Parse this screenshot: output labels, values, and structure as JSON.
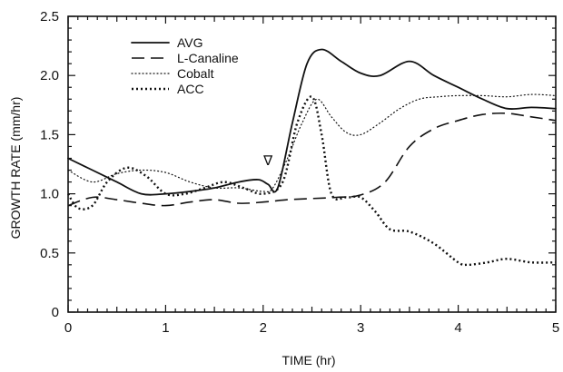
{
  "chart_data": {
    "type": "line",
    "title": "",
    "xlabel": "TIME (hr)",
    "ylabel": "GROWTH RATE (mm/hr)",
    "xlim": [
      0,
      5
    ],
    "ylim": [
      0,
      2.5
    ],
    "x_ticks": [
      "0",
      "1",
      "2",
      "3",
      "4",
      "5"
    ],
    "y_ticks": [
      "0",
      "0.5",
      "1.0",
      "1.5",
      "2.0",
      "2.5"
    ],
    "grid": false,
    "legend_position": "top-left",
    "annotation": {
      "text": "∇",
      "x": 2.05,
      "y": 1.28
    },
    "series": [
      {
        "name": "AVG",
        "style": "solid",
        "points": [
          [
            0,
            1.3
          ],
          [
            0.25,
            1.2
          ],
          [
            0.5,
            1.1
          ],
          [
            0.75,
            1.0
          ],
          [
            1.0,
            1.0
          ],
          [
            1.25,
            1.02
          ],
          [
            1.5,
            1.05
          ],
          [
            1.75,
            1.1
          ],
          [
            1.95,
            1.12
          ],
          [
            2.05,
            1.08
          ],
          [
            2.15,
            1.05
          ],
          [
            2.3,
            1.6
          ],
          [
            2.45,
            2.1
          ],
          [
            2.6,
            2.22
          ],
          [
            2.8,
            2.12
          ],
          [
            3.0,
            2.02
          ],
          [
            3.2,
            2.0
          ],
          [
            3.5,
            2.12
          ],
          [
            3.75,
            2.0
          ],
          [
            4.0,
            1.9
          ],
          [
            4.25,
            1.8
          ],
          [
            4.5,
            1.72
          ],
          [
            4.75,
            1.73
          ],
          [
            5.0,
            1.72
          ]
        ]
      },
      {
        "name": "L-Canaline",
        "style": "dashed",
        "points": [
          [
            0,
            0.9
          ],
          [
            0.25,
            0.97
          ],
          [
            0.5,
            0.95
          ],
          [
            0.75,
            0.92
          ],
          [
            1.0,
            0.9
          ],
          [
            1.25,
            0.93
          ],
          [
            1.5,
            0.95
          ],
          [
            1.75,
            0.92
          ],
          [
            2.0,
            0.93
          ],
          [
            2.25,
            0.95
          ],
          [
            2.5,
            0.96
          ],
          [
            2.75,
            0.97
          ],
          [
            3.0,
            0.99
          ],
          [
            3.25,
            1.1
          ],
          [
            3.5,
            1.4
          ],
          [
            3.75,
            1.55
          ],
          [
            4.0,
            1.62
          ],
          [
            4.25,
            1.67
          ],
          [
            4.5,
            1.68
          ],
          [
            4.75,
            1.65
          ],
          [
            5.0,
            1.62
          ]
        ]
      },
      {
        "name": "Cobalt",
        "style": "fine-dotted",
        "points": [
          [
            0,
            1.2
          ],
          [
            0.25,
            1.1
          ],
          [
            0.5,
            1.17
          ],
          [
            0.75,
            1.2
          ],
          [
            1.0,
            1.18
          ],
          [
            1.25,
            1.1
          ],
          [
            1.5,
            1.05
          ],
          [
            1.75,
            1.05
          ],
          [
            2.0,
            1.02
          ],
          [
            2.1,
            1.05
          ],
          [
            2.25,
            1.3
          ],
          [
            2.4,
            1.6
          ],
          [
            2.55,
            1.8
          ],
          [
            2.7,
            1.65
          ],
          [
            2.85,
            1.52
          ],
          [
            3.0,
            1.5
          ],
          [
            3.2,
            1.6
          ],
          [
            3.4,
            1.72
          ],
          [
            3.6,
            1.8
          ],
          [
            3.8,
            1.82
          ],
          [
            4.0,
            1.83
          ],
          [
            4.25,
            1.83
          ],
          [
            4.5,
            1.82
          ],
          [
            4.75,
            1.84
          ],
          [
            5.0,
            1.83
          ]
        ]
      },
      {
        "name": "ACC",
        "style": "dotted",
        "points": [
          [
            0,
            1.0
          ],
          [
            0.1,
            0.88
          ],
          [
            0.25,
            0.9
          ],
          [
            0.4,
            1.1
          ],
          [
            0.6,
            1.22
          ],
          [
            0.8,
            1.15
          ],
          [
            1.0,
            1.0
          ],
          [
            1.2,
            1.0
          ],
          [
            1.4,
            1.05
          ],
          [
            1.6,
            1.1
          ],
          [
            1.8,
            1.05
          ],
          [
            2.0,
            1.0
          ],
          [
            2.2,
            1.1
          ],
          [
            2.35,
            1.6
          ],
          [
            2.5,
            1.82
          ],
          [
            2.6,
            1.5
          ],
          [
            2.7,
            1.0
          ],
          [
            2.85,
            0.97
          ],
          [
            3.0,
            0.97
          ],
          [
            3.15,
            0.85
          ],
          [
            3.3,
            0.7
          ],
          [
            3.5,
            0.68
          ],
          [
            3.75,
            0.58
          ],
          [
            4.0,
            0.42
          ],
          [
            4.1,
            0.4
          ],
          [
            4.3,
            0.42
          ],
          [
            4.5,
            0.45
          ],
          [
            4.75,
            0.42
          ],
          [
            5.0,
            0.42
          ]
        ]
      }
    ]
  }
}
